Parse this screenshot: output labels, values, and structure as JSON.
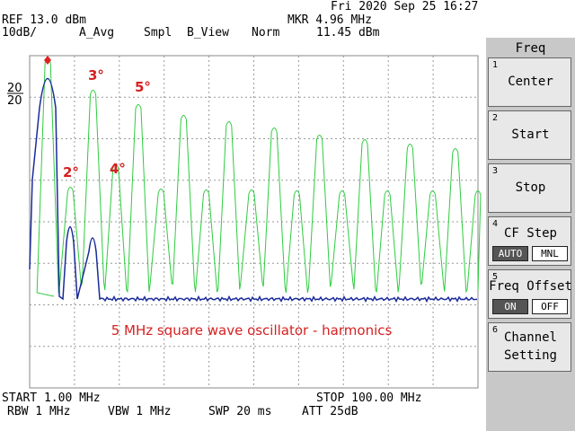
{
  "status": {
    "datetime": "Fri 2020 Sep 25 16:27",
    "ref": "REF 13.0 dBm",
    "marker_freq": "MKR 4.96 MHz",
    "scale": "10dB/",
    "trace_a": "A_Avg",
    "detector": "Smpl",
    "trace_b": "B_View",
    "mode": "Norm",
    "marker_level": "11.45 dBm"
  },
  "display": {
    "scale_labels": [
      "20",
      "20"
    ],
    "harmonic_labels": [
      "2°",
      "3°",
      "4°",
      "5°"
    ],
    "annotation": "5 MHz square wave oscillator - harmonics"
  },
  "footer": {
    "start": "START 1.00 MHz",
    "stop": "STOP 100.00 MHz",
    "rbw": "RBW 1 MHz",
    "vbw": "VBW 1 MHz",
    "sweep": "SWP 20 ms",
    "attenuation": "ATT 25dB"
  },
  "softkeys": {
    "menu": "Freq",
    "keys": [
      {
        "number": "1",
        "label": "Center"
      },
      {
        "number": "2",
        "label": "Start"
      },
      {
        "number": "3",
        "label": "Stop"
      },
      {
        "number": "4",
        "label": "CF Step",
        "options": [
          "AUTO",
          "MNL"
        ]
      },
      {
        "number": "5",
        "label": "Freq Offset",
        "options": [
          "ON",
          "OFF"
        ]
      },
      {
        "number": "6",
        "label": "Channel Setting"
      }
    ]
  }
}
